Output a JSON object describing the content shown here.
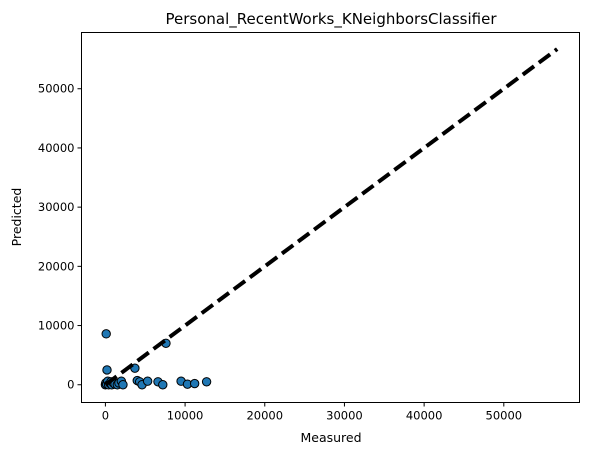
{
  "chart_data": {
    "type": "scatter",
    "title": "Personal_RecentWorks_KNeighborsClassifier",
    "xlabel": "Measured",
    "ylabel": "Predicted",
    "xlim": [
      -3000,
      59500
    ],
    "ylim": [
      -3000,
      59500
    ],
    "xticks": [
      0,
      10000,
      20000,
      30000,
      40000,
      50000
    ],
    "yticks": [
      0,
      10000,
      20000,
      30000,
      40000,
      50000
    ],
    "xtick_labels": [
      "0",
      "10000",
      "20000",
      "30000",
      "40000",
      "50000"
    ],
    "ytick_labels": [
      "0",
      "10000",
      "20000",
      "30000",
      "40000",
      "50000"
    ],
    "grid": false,
    "point_color": "#1f77b4",
    "point_edge_color": "#000000",
    "line_color": "#000000",
    "identity_line": {
      "x": [
        0,
        56700
      ],
      "y": [
        0,
        56700
      ],
      "style": "dashed"
    },
    "points": [
      {
        "x": 100,
        "y": 8600
      },
      {
        "x": 200,
        "y": 2500
      },
      {
        "x": 0,
        "y": 0
      },
      {
        "x": 50,
        "y": 300
      },
      {
        "x": 150,
        "y": 100
      },
      {
        "x": 300,
        "y": 600
      },
      {
        "x": 400,
        "y": 0
      },
      {
        "x": 600,
        "y": 200
      },
      {
        "x": 700,
        "y": 500
      },
      {
        "x": 800,
        "y": 0
      },
      {
        "x": 1000,
        "y": 300
      },
      {
        "x": 1200,
        "y": 100
      },
      {
        "x": 1500,
        "y": 0
      },
      {
        "x": 1700,
        "y": 300
      },
      {
        "x": 2000,
        "y": 600
      },
      {
        "x": 2200,
        "y": 0
      },
      {
        "x": 3700,
        "y": 2800
      },
      {
        "x": 4000,
        "y": 700
      },
      {
        "x": 4300,
        "y": 500
      },
      {
        "x": 4600,
        "y": 0
      },
      {
        "x": 5300,
        "y": 600
      },
      {
        "x": 6600,
        "y": 500
      },
      {
        "x": 7200,
        "y": 0
      },
      {
        "x": 7600,
        "y": 7000
      },
      {
        "x": 9500,
        "y": 600
      },
      {
        "x": 10300,
        "y": 100
      },
      {
        "x": 11200,
        "y": 200
      },
      {
        "x": 12700,
        "y": 500
      }
    ]
  }
}
